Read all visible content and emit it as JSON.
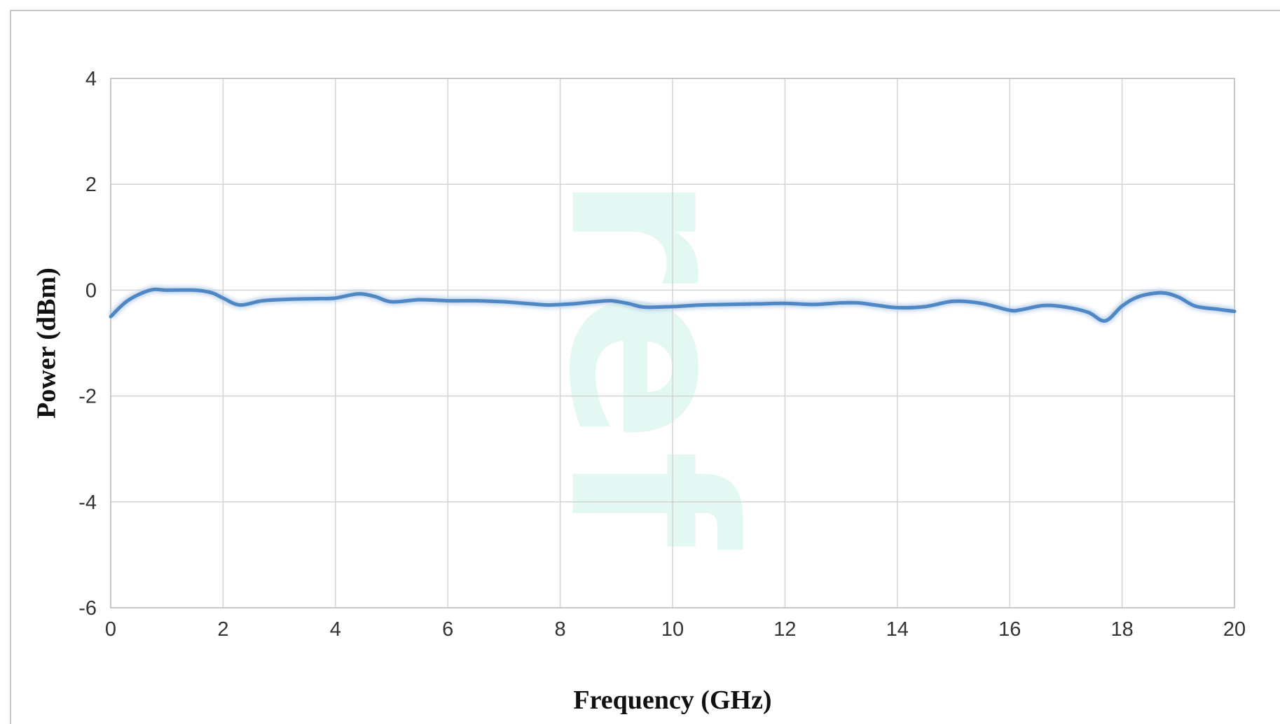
{
  "chart_data": {
    "type": "line",
    "xlabel": "Frequency (GHz)",
    "ylabel": "Power (dBm)",
    "xlim": [
      0,
      20
    ],
    "ylim": [
      -6,
      4
    ],
    "x_ticks": [
      0,
      2,
      4,
      6,
      8,
      10,
      12,
      14,
      16,
      18,
      20
    ],
    "y_ticks": [
      4,
      2,
      0,
      -2,
      -4,
      -6
    ],
    "grid": true,
    "series": [
      {
        "color": "#4f87c4",
        "x": [
          0,
          0.3,
          0.7,
          1.0,
          1.5,
          1.8,
          2.0,
          2.3,
          2.7,
          3.2,
          3.7,
          4.0,
          4.4,
          4.7,
          5.0,
          5.5,
          6.0,
          6.5,
          7.0,
          7.5,
          7.8,
          8.2,
          8.6,
          8.9,
          9.2,
          9.5,
          10.0,
          10.5,
          11.0,
          11.5,
          12.0,
          12.5,
          13.0,
          13.3,
          13.6,
          14.0,
          14.5,
          15.0,
          15.5,
          16.0,
          16.2,
          16.6,
          17.0,
          17.4,
          17.7,
          18.0,
          18.3,
          18.7,
          19.0,
          19.3,
          19.7,
          20.0
        ],
        "y": [
          -0.5,
          -0.2,
          0.0,
          0.0,
          0.0,
          -0.05,
          -0.15,
          -0.28,
          -0.2,
          -0.17,
          -0.16,
          -0.15,
          -0.07,
          -0.12,
          -0.22,
          -0.18,
          -0.2,
          -0.2,
          -0.22,
          -0.26,
          -0.28,
          -0.26,
          -0.22,
          -0.2,
          -0.25,
          -0.32,
          -0.31,
          -0.28,
          -0.27,
          -0.26,
          -0.25,
          -0.27,
          -0.24,
          -0.24,
          -0.28,
          -0.33,
          -0.31,
          -0.21,
          -0.25,
          -0.38,
          -0.37,
          -0.29,
          -0.32,
          -0.42,
          -0.58,
          -0.3,
          -0.12,
          -0.05,
          -0.13,
          -0.3,
          -0.36,
          -0.4
        ]
      }
    ]
  }
}
